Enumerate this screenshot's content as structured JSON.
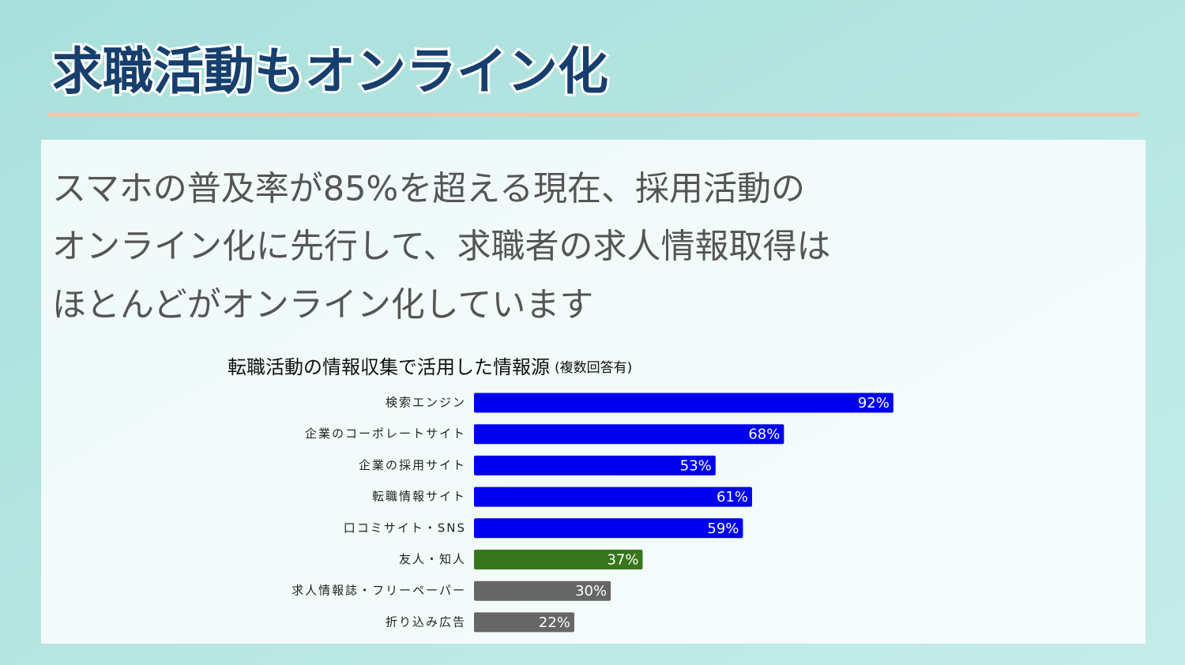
{
  "slide": {
    "title": "求職活動もオンライン化",
    "body_lines": [
      "スマホの普及率が85%を超える現在、採用活動の",
      "オンライン化に先行して、求職者の求人情報取得は",
      "ほとんどがオンライン化しています"
    ]
  },
  "chart_data": {
    "type": "barh",
    "title": "転職活動の情報収集で活用した情報源",
    "subtitle": "(複数回答有)",
    "categories": [
      "検索エンジン",
      "企業のコーポレートサイト",
      "企業の採用サイト",
      "転職情報サイト",
      "口コミサイト・SNS",
      "友人・知人",
      "求人情報誌・フリーペーパー",
      "折り込み広告"
    ],
    "values": [
      92,
      68,
      53,
      61,
      59,
      37,
      30,
      22
    ],
    "value_labels": [
      "92%",
      "68%",
      "53%",
      "61%",
      "59%",
      "37%",
      "30%",
      "22%"
    ],
    "colors": [
      "#0000ee",
      "#0000ee",
      "#0000ee",
      "#0000ee",
      "#0000ee",
      "#38761d",
      "#666666",
      "#666666"
    ],
    "xlim": [
      0,
      100
    ]
  }
}
